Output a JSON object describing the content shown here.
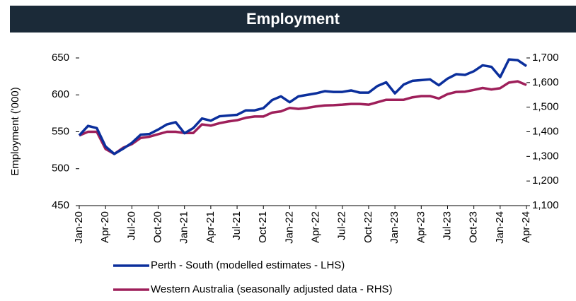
{
  "chart_data": {
    "type": "line",
    "title": "Employment",
    "y_label": "Employment ('000)",
    "categories": [
      "Jan-20",
      null,
      null,
      "Apr-20",
      null,
      null,
      "Jul-20",
      null,
      null,
      "Oct-20",
      null,
      null,
      "Jan-21",
      null,
      null,
      "Apr-21",
      null,
      null,
      "Jul-21",
      null,
      null,
      "Oct-21",
      null,
      null,
      "Jan-22",
      null,
      null,
      "Apr-22",
      null,
      null,
      "Jul-22",
      null,
      null,
      "Oct-22",
      null,
      null,
      "Jan-23",
      null,
      null,
      "Apr-23",
      null,
      null,
      "Jul-23",
      null,
      null,
      "Oct-23",
      null,
      null,
      "Jan-24",
      null,
      null,
      "Apr-24"
    ],
    "series": [
      {
        "name": "Perth - South (modelled estimates - LHS)",
        "color": "#0b2f9c",
        "values": [
          545,
          558,
          555,
          530,
          520,
          527,
          535,
          546,
          547,
          553,
          560,
          563,
          548,
          555,
          568,
          565,
          571,
          572,
          573,
          579,
          579,
          582,
          593,
          598,
          590,
          598,
          600,
          602,
          605,
          604,
          604,
          606,
          603,
          603,
          612,
          617,
          602,
          614,
          619,
          620,
          621,
          613,
          622,
          628,
          627,
          632,
          640,
          638,
          624,
          648,
          647,
          639
        ]
      },
      {
        "name": "Western Australia (seasonally adjusted data - RHS)",
        "color": "#9e1f5a",
        "axis": "y2",
        "values": [
          1385,
          1400,
          1400,
          1330,
          1310,
          1335,
          1350,
          1375,
          1380,
          1390,
          1400,
          1400,
          1395,
          1395,
          1430,
          1425,
          1435,
          1442,
          1447,
          1457,
          1462,
          1462,
          1478,
          1483,
          1497,
          1493,
          1497,
          1503,
          1507,
          1508,
          1510,
          1513,
          1513,
          1510,
          1520,
          1530,
          1530,
          1530,
          1540,
          1545,
          1545,
          1535,
          1553,
          1562,
          1563,
          1570,
          1578,
          1572,
          1577,
          1600,
          1605,
          1590
        ]
      }
    ],
    "ylim": [
      450,
      650
    ],
    "yticks": [
      450,
      500,
      550,
      600,
      650
    ],
    "y2lim": [
      1100,
      1700
    ],
    "y2ticks": [
      {
        "value": 1100,
        "label": "1,100"
      },
      {
        "value": 1200,
        "label": "1,200"
      },
      {
        "value": 1300,
        "label": "1,300"
      },
      {
        "value": 1400,
        "label": "1,400"
      },
      {
        "value": 1500,
        "label": "1,500"
      },
      {
        "value": 1600,
        "label": "1,600"
      },
      {
        "value": 1700,
        "label": "1,700"
      }
    ],
    "grid": false,
    "legend": "bottom"
  }
}
